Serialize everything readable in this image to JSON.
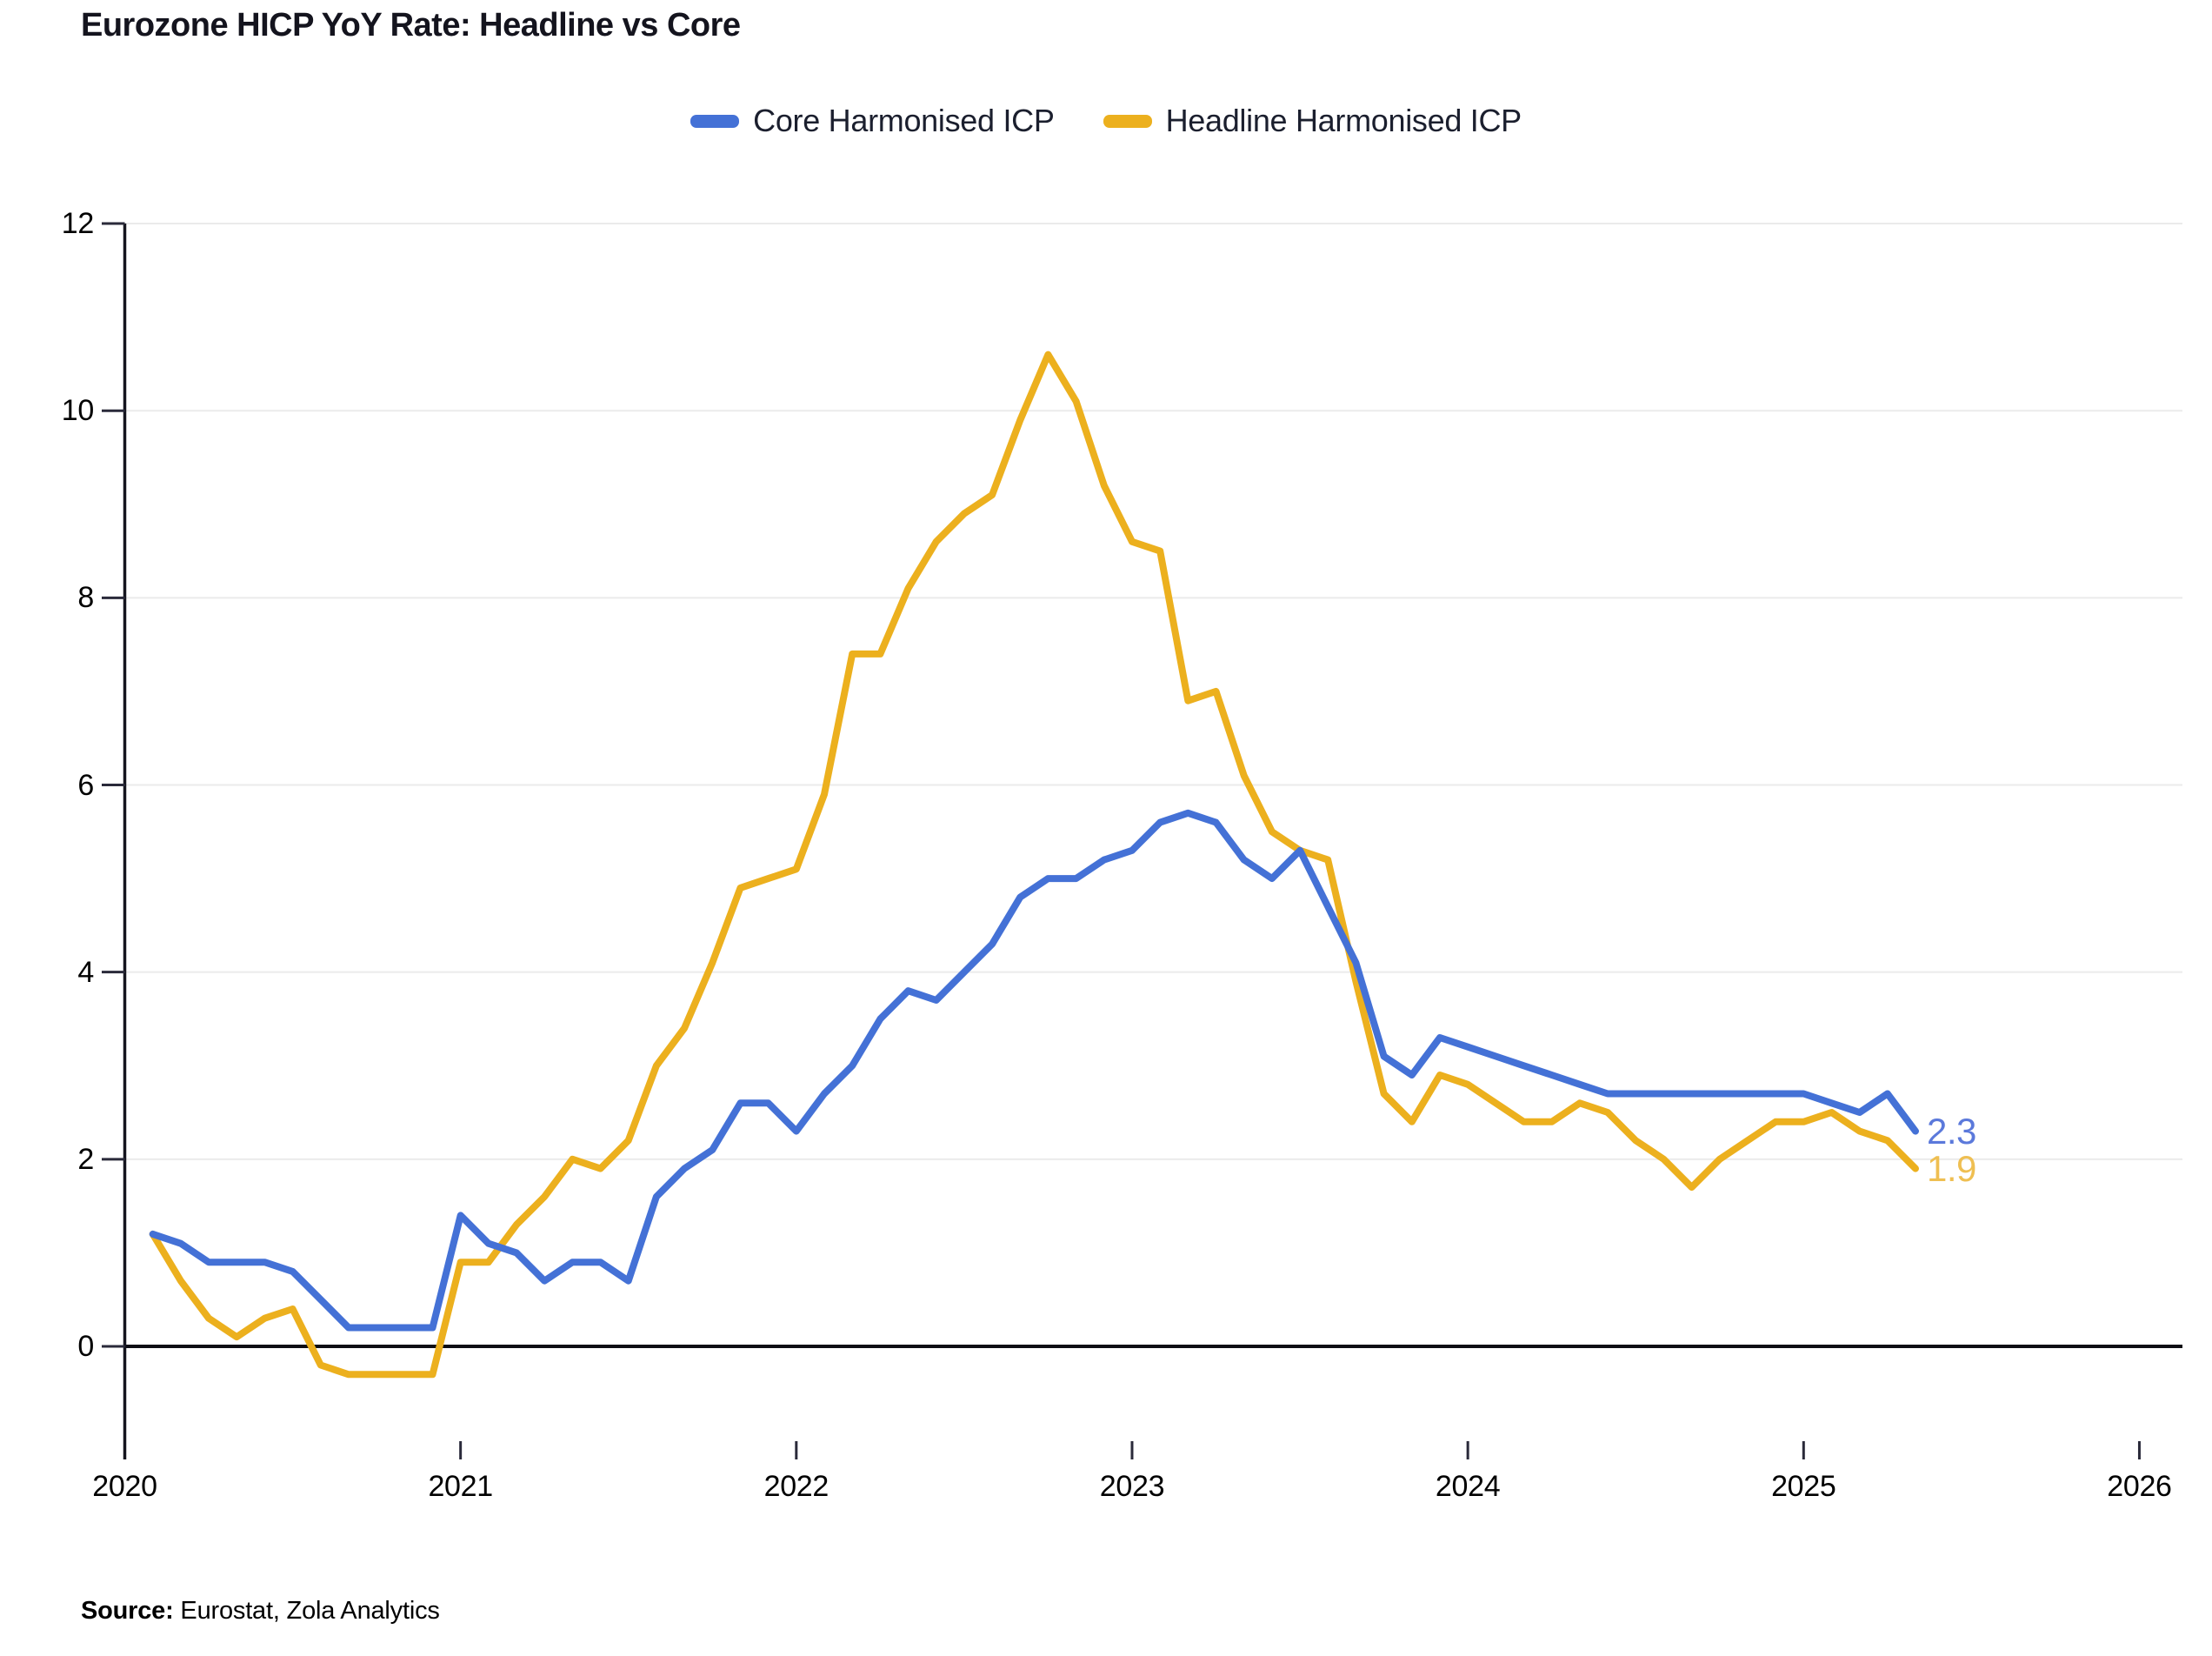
{
  "title": "Eurozone HICP YoY Rate: Headline vs Core",
  "legend": {
    "items": [
      {
        "label": "Core Harmonised ICP",
        "color": "#4471D6"
      },
      {
        "label": "Headline Harmonised ICP",
        "color": "#ECB01E"
      }
    ]
  },
  "axes": {
    "y_tick_labels": [
      "0",
      "2",
      "4",
      "6",
      "8",
      "10",
      "12"
    ],
    "y_tick_values": [
      0,
      2,
      4,
      6,
      8,
      10,
      12
    ],
    "x_tick_labels": [
      "2020",
      "2021",
      "2022",
      "2023",
      "2024",
      "2025",
      "2026"
    ]
  },
  "end_labels": {
    "core": "2.3",
    "headline": "1.9",
    "core_color": "#5B79DB",
    "headline_color": "#EFBF52"
  },
  "source": {
    "prefix": "Source:",
    "text": " Eurostat, Zola Analytics"
  },
  "chart_data": {
    "type": "line",
    "title": "Eurozone HICP YoY Rate: Headline vs Core",
    "xlabel": "",
    "ylabel": "",
    "x_start": "2020-02",
    "x_end": "2025-05",
    "frequency": "monthly",
    "x_axis_years": [
      2020,
      2021,
      2022,
      2023,
      2024,
      2025,
      2026
    ],
    "ylim": [
      -1.0,
      12.2
    ],
    "grid": "horizontal-only",
    "legend_position": "top-center",
    "series": [
      {
        "name": "Core Harmonised ICP",
        "color": "#4471D6",
        "last_value_label": "2.3",
        "values": [
          1.2,
          1.1,
          0.9,
          0.9,
          0.9,
          0.8,
          0.5,
          0.2,
          0.2,
          0.2,
          0.2,
          1.4,
          1.1,
          1.0,
          0.7,
          0.9,
          0.9,
          0.7,
          1.6,
          1.9,
          2.1,
          2.6,
          2.6,
          2.3,
          2.7,
          3.0,
          3.5,
          3.8,
          3.7,
          4.0,
          4.3,
          4.8,
          5.0,
          5.0,
          5.2,
          5.3,
          5.6,
          5.7,
          5.6,
          5.2,
          5.0,
          5.3,
          4.7,
          4.1,
          3.1,
          2.9,
          3.3,
          3.2,
          3.1,
          3.0,
          2.9,
          2.8,
          2.7,
          2.7,
          2.7,
          2.7,
          2.7,
          2.7,
          2.7,
          2.7,
          2.6,
          2.5,
          2.7,
          2.3
        ]
      },
      {
        "name": "Headline Harmonised ICP",
        "color": "#ECB01E",
        "last_value_label": "1.9",
        "values": [
          1.2,
          0.7,
          0.3,
          0.1,
          0.3,
          0.4,
          -0.2,
          -0.3,
          -0.3,
          -0.3,
          -0.3,
          0.9,
          0.9,
          1.3,
          1.6,
          2.0,
          1.9,
          2.2,
          3.0,
          3.4,
          4.1,
          4.9,
          5.0,
          5.1,
          5.9,
          7.4,
          7.4,
          8.1,
          8.6,
          8.9,
          9.1,
          9.9,
          10.6,
          10.1,
          9.2,
          8.6,
          8.5,
          6.9,
          7.0,
          6.1,
          5.5,
          5.3,
          5.2,
          3.9,
          2.7,
          2.4,
          2.9,
          2.8,
          2.6,
          2.4,
          2.4,
          2.6,
          2.5,
          2.2,
          2.0,
          1.7,
          2.0,
          2.2,
          2.4,
          2.4,
          2.5,
          2.3,
          2.2,
          1.9
        ]
      }
    ]
  }
}
